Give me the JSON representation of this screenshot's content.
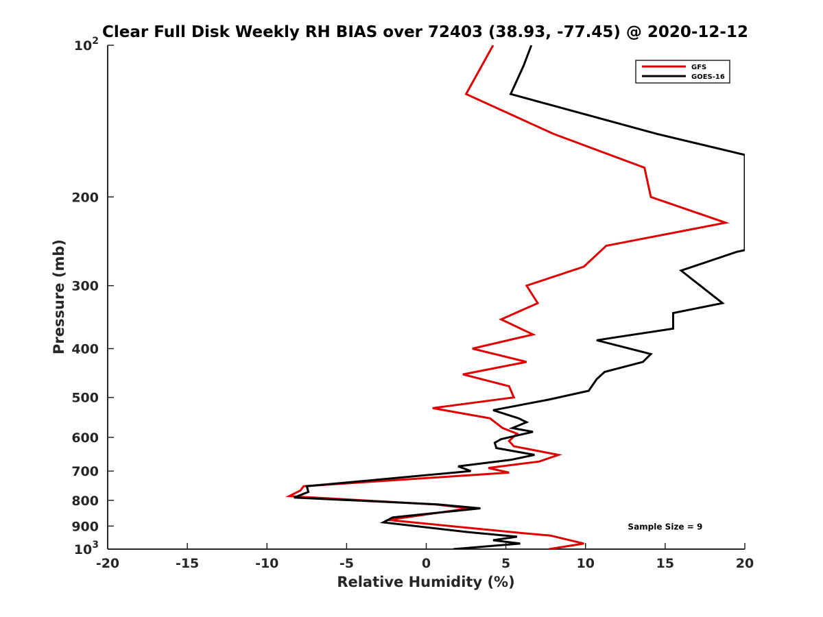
{
  "chart_data": {
    "type": "line",
    "title": "Clear Full Disk Weekly RH BIAS over 72403 (38.93, -77.45) @ 2020-12-12",
    "xlabel": "Relative Humidity (%)",
    "ylabel": "Pressure (mb)",
    "xlim": [
      -20,
      20
    ],
    "ylim": [
      100,
      1000
    ],
    "y_scale": "log",
    "y_reversed": true,
    "x_ticks": [
      "-20",
      "-15",
      "-10",
      "-5",
      "0",
      "5",
      "10",
      "15",
      "20"
    ],
    "y_ticks": [
      {
        "value": 100,
        "label": "10",
        "sup": "2"
      },
      {
        "value": 200,
        "label": "200",
        "sup": ""
      },
      {
        "value": 300,
        "label": "300",
        "sup": ""
      },
      {
        "value": 400,
        "label": "400",
        "sup": ""
      },
      {
        "value": 500,
        "label": "500",
        "sup": ""
      },
      {
        "value": 600,
        "label": "600",
        "sup": ""
      },
      {
        "value": 700,
        "label": "700",
        "sup": ""
      },
      {
        "value": 800,
        "label": "800",
        "sup": ""
      },
      {
        "value": 900,
        "label": "900",
        "sup": ""
      },
      {
        "value": 1000,
        "label": "10",
        "sup": "3"
      }
    ],
    "grid": false,
    "legend_position": "top-right",
    "series": [
      {
        "name": "GFS",
        "color": "#e00000",
        "points": [
          [
            4.2,
            100
          ],
          [
            2.5,
            125
          ],
          [
            8.0,
            150
          ],
          [
            13.7,
            175
          ],
          [
            14.1,
            200
          ],
          [
            18.8,
            225
          ],
          [
            11.3,
            250
          ],
          [
            9.9,
            275
          ],
          [
            6.3,
            300
          ],
          [
            7.0,
            325
          ],
          [
            4.7,
            350
          ],
          [
            6.7,
            375
          ],
          [
            2.9,
            400
          ],
          [
            6.3,
            425
          ],
          [
            2.3,
            450
          ],
          [
            5.2,
            475
          ],
          [
            5.5,
            500
          ],
          [
            0.4,
            525
          ],
          [
            4.0,
            550
          ],
          [
            4.8,
            575
          ],
          [
            5.7,
            590
          ],
          [
            5.2,
            610
          ],
          [
            5.5,
            625
          ],
          [
            8.3,
            650
          ],
          [
            7.1,
            670
          ],
          [
            3.9,
            690
          ],
          [
            5.2,
            705
          ],
          [
            -7.7,
            750
          ],
          [
            -7.9,
            765
          ],
          [
            -8.6,
            785
          ],
          [
            0.5,
            815
          ],
          [
            2.7,
            830
          ],
          [
            -2.4,
            875
          ],
          [
            6.1,
            930
          ],
          [
            7.8,
            940
          ],
          [
            9.9,
            975
          ],
          [
            7.7,
            1000
          ]
        ]
      },
      {
        "name": "GOES-16",
        "color": "#000000",
        "points": [
          [
            6.6,
            100
          ],
          [
            6.1,
            110
          ],
          [
            5.3,
            125
          ],
          [
            14.5,
            150
          ],
          [
            20.0,
            165
          ],
          [
            20.0,
            255
          ],
          [
            19.5,
            257
          ],
          [
            16.0,
            280
          ],
          [
            18.6,
            325
          ],
          [
            15.5,
            340
          ],
          [
            15.5,
            365
          ],
          [
            10.7,
            385
          ],
          [
            14.1,
            410
          ],
          [
            13.6,
            425
          ],
          [
            11.2,
            445
          ],
          [
            10.7,
            460
          ],
          [
            10.2,
            485
          ],
          [
            7.7,
            505
          ],
          [
            4.2,
            530
          ],
          [
            5.8,
            550
          ],
          [
            6.3,
            560
          ],
          [
            5.4,
            575
          ],
          [
            6.7,
            585
          ],
          [
            4.7,
            605
          ],
          [
            4.3,
            615
          ],
          [
            4.4,
            630
          ],
          [
            6.8,
            650
          ],
          [
            5.3,
            665
          ],
          [
            2.0,
            685
          ],
          [
            2.8,
            700
          ],
          [
            -7.5,
            750
          ],
          [
            -7.4,
            770
          ],
          [
            -8.3,
            790
          ],
          [
            0.7,
            815
          ],
          [
            3.4,
            830
          ],
          [
            -2.1,
            865
          ],
          [
            -2.7,
            885
          ],
          [
            2.6,
            925
          ],
          [
            5.7,
            945
          ],
          [
            4.2,
            960
          ],
          [
            5.9,
            975
          ],
          [
            1.7,
            1000
          ]
        ]
      }
    ],
    "annotations": [
      {
        "text": "Sample Size = 9",
        "x": 15.0,
        "y": 900
      }
    ]
  }
}
